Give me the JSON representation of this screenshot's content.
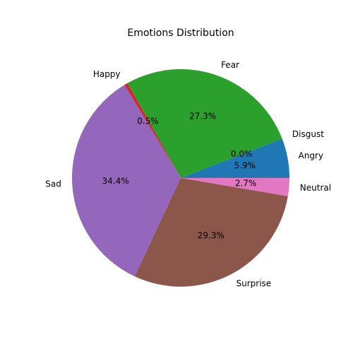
{
  "chart_data": {
    "type": "pie",
    "title": "Emotions Distribution",
    "start_angle_deg": 0,
    "direction": "counterclockwise",
    "slices": [
      {
        "label": "Angry",
        "value": 5.9,
        "pct_label": "5.9%",
        "color": "#1f77b4"
      },
      {
        "label": "Disgust",
        "value": 0.0,
        "pct_label": "0.0%",
        "color": "#ff7f0e"
      },
      {
        "label": "Fear",
        "value": 27.3,
        "pct_label": "27.3%",
        "color": "#2ca02c"
      },
      {
        "label": "Happy",
        "value": 0.5,
        "pct_label": "0.5%",
        "color": "#d62728"
      },
      {
        "label": "Sad",
        "value": 34.4,
        "pct_label": "34.4%",
        "color": "#9467bd"
      },
      {
        "label": "Surprise",
        "value": 29.3,
        "pct_label": "29.3%",
        "color": "#8c564b"
      },
      {
        "label": "Neutral",
        "value": 2.7,
        "pct_label": "2.7%",
        "color": "#e377c2"
      }
    ]
  }
}
